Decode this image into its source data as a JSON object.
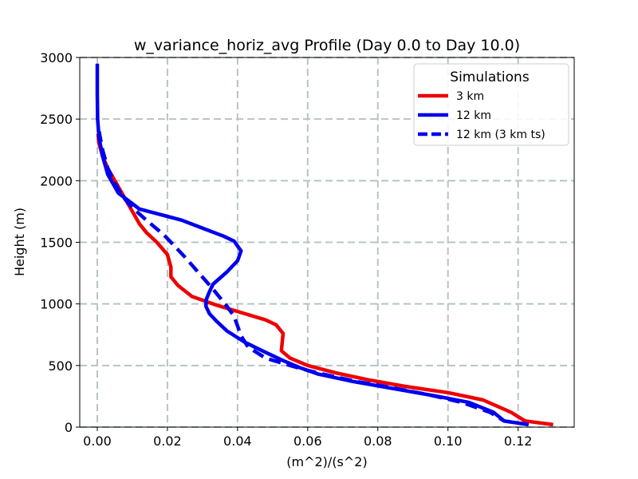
{
  "chart_data": {
    "type": "line",
    "title": "w_variance_horiz_avg Profile (Day 0.0 to Day 10.0)",
    "xlabel": "(m^2)/(s^2)",
    "ylabel": "Height (m)",
    "xlim": [
      -0.005,
      0.136
    ],
    "ylim": [
      0,
      3000
    ],
    "x_ticks": [
      0.0,
      0.02,
      0.04,
      0.06,
      0.08,
      0.1,
      0.12
    ],
    "x_tick_labels": [
      "0.00",
      "0.02",
      "0.04",
      "0.06",
      "0.08",
      "0.10",
      "0.12"
    ],
    "y_ticks": [
      0,
      500,
      1000,
      1500,
      2000,
      2500,
      3000
    ],
    "y_tick_labels": [
      "0",
      "500",
      "1000",
      "1500",
      "2000",
      "2500",
      "3000"
    ],
    "grid": true,
    "legend": {
      "title": "Simulations",
      "position": "top-right"
    },
    "series": [
      {
        "name": "3 km",
        "color": "#ee0000",
        "style": "solid",
        "points": [
          [
            0.13,
            20
          ],
          [
            0.122,
            50
          ],
          [
            0.118,
            120
          ],
          [
            0.11,
            220
          ],
          [
            0.1,
            280
          ],
          [
            0.088,
            330
          ],
          [
            0.078,
            380
          ],
          [
            0.068,
            440
          ],
          [
            0.06,
            500
          ],
          [
            0.055,
            560
          ],
          [
            0.0525,
            620
          ],
          [
            0.053,
            760
          ],
          [
            0.051,
            830
          ],
          [
            0.048,
            870
          ],
          [
            0.041,
            930
          ],
          [
            0.034,
            990
          ],
          [
            0.027,
            1060
          ],
          [
            0.023,
            1150
          ],
          [
            0.021,
            1220
          ],
          [
            0.021,
            1300
          ],
          [
            0.02,
            1400
          ],
          [
            0.017,
            1500
          ],
          [
            0.014,
            1580
          ],
          [
            0.012,
            1650
          ],
          [
            0.01,
            1750
          ],
          [
            0.007,
            1900
          ],
          [
            0.005,
            2000
          ],
          [
            0.003,
            2100
          ],
          [
            0.0015,
            2200
          ],
          [
            0.0005,
            2300
          ],
          [
            0.0002,
            2380
          ]
        ]
      },
      {
        "name": "12 km",
        "color": "#0000ee",
        "style": "solid",
        "points": [
          [
            0.123,
            20
          ],
          [
            0.116,
            50
          ],
          [
            0.113,
            120
          ],
          [
            0.106,
            200
          ],
          [
            0.097,
            250
          ],
          [
            0.085,
            310
          ],
          [
            0.073,
            370
          ],
          [
            0.063,
            430
          ],
          [
            0.058,
            480
          ],
          [
            0.053,
            540
          ],
          [
            0.047,
            620
          ],
          [
            0.042,
            690
          ],
          [
            0.037,
            780
          ],
          [
            0.034,
            860
          ],
          [
            0.032,
            920
          ],
          [
            0.031,
            980
          ],
          [
            0.031,
            1030
          ],
          [
            0.032,
            1100
          ],
          [
            0.033,
            1160
          ],
          [
            0.037,
            1260
          ],
          [
            0.04,
            1350
          ],
          [
            0.041,
            1430
          ],
          [
            0.039,
            1510
          ],
          [
            0.036,
            1550
          ],
          [
            0.024,
            1680
          ],
          [
            0.012,
            1770
          ],
          [
            0.006,
            1900
          ],
          [
            0.003,
            2050
          ],
          [
            0.0015,
            2200
          ],
          [
            0.0005,
            2350
          ],
          [
            0.0001,
            2500
          ],
          [
            0.0,
            2700
          ],
          [
            0.0,
            2950
          ]
        ]
      },
      {
        "name": "12 km (3 km ts)",
        "color": "#0000ee",
        "style": "dashed",
        "points": [
          [
            0.123,
            20
          ],
          [
            0.116,
            50
          ],
          [
            0.112,
            120
          ],
          [
            0.104,
            200
          ],
          [
            0.095,
            260
          ],
          [
            0.084,
            320
          ],
          [
            0.074,
            370
          ],
          [
            0.066,
            420
          ],
          [
            0.06,
            460
          ],
          [
            0.055,
            500
          ],
          [
            0.048,
            560
          ],
          [
            0.043,
            650
          ],
          [
            0.041,
            740
          ],
          [
            0.04,
            820
          ],
          [
            0.039,
            900
          ],
          [
            0.037,
            980
          ],
          [
            0.033,
            1120
          ],
          [
            0.029,
            1250
          ],
          [
            0.025,
            1380
          ],
          [
            0.019,
            1560
          ],
          [
            0.014,
            1680
          ],
          [
            0.01,
            1780
          ],
          [
            0.007,
            1880
          ],
          [
            0.005,
            1980
          ],
          [
            0.003,
            2100
          ],
          [
            0.0015,
            2250
          ],
          [
            0.0005,
            2400
          ]
        ]
      }
    ]
  }
}
